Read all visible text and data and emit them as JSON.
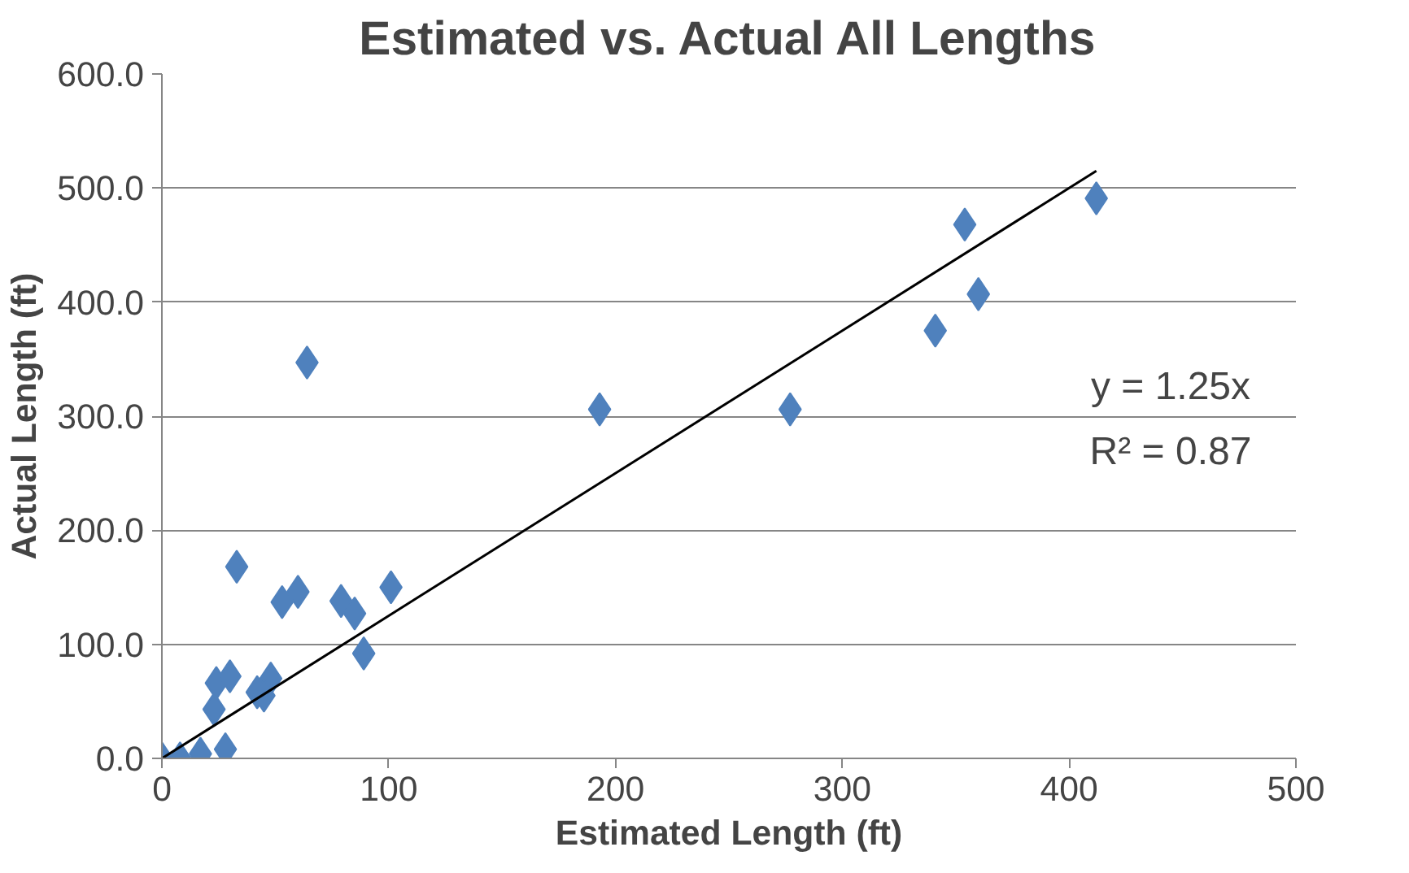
{
  "chart_data": {
    "type": "scatter",
    "title": "Estimated vs. Actual All Lengths",
    "xlabel": "Estimated Length (ft)",
    "ylabel": "Actual Length (ft)",
    "marker": "diamond",
    "grid": "y",
    "xlim": [
      0,
      500
    ],
    "xticks": [
      0,
      100,
      200,
      300,
      400,
      500
    ],
    "ylim": [
      0,
      600
    ],
    "yticks": [
      {
        "value": 0,
        "label": "0.0"
      },
      {
        "value": 100,
        "label": "100.0"
      },
      {
        "value": 200,
        "label": "200.0"
      },
      {
        "value": 300,
        "label": "300.0"
      },
      {
        "value": 400,
        "label": "400.0"
      },
      {
        "value": 500,
        "label": "500.0"
      },
      {
        "value": 600,
        "label": "600.0"
      }
    ],
    "annotations": [
      "y = 1.25x",
      "R² = 0.87"
    ],
    "series": [
      {
        "color": "#4f81bd",
        "x": [
          0,
          8,
          17,
          28,
          23,
          24,
          30,
          42,
          48,
          45,
          33,
          53,
          60,
          79,
          85,
          89,
          101,
          64,
          193,
          277,
          341,
          354,
          360,
          412
        ],
        "values": [
          0,
          0,
          4,
          8,
          43,
          66,
          72,
          58,
          70,
          55,
          168,
          137,
          146,
          138,
          127,
          92,
          150,
          347,
          306,
          306,
          375,
          468,
          407,
          491
        ]
      },
      {
        "type": "line",
        "color": "#000000",
        "marker": "none",
        "x": [
          0,
          412
        ],
        "values": [
          0,
          515
        ]
      }
    ]
  }
}
